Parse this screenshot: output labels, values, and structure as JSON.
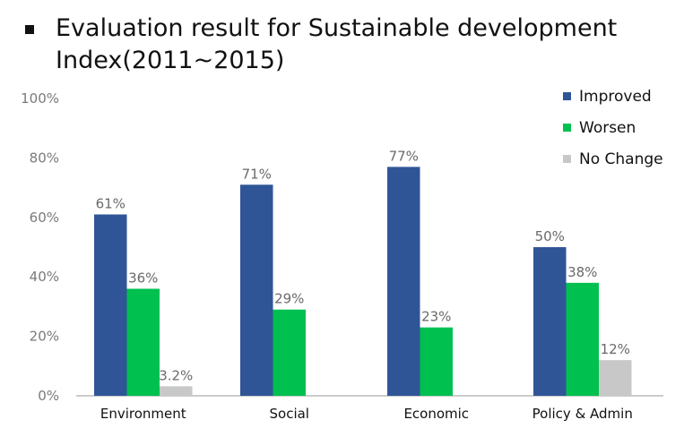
{
  "chart_data": {
    "type": "bar",
    "title": "Evaluation result for Sustainable development Index(2011~2015)",
    "title_lines": [
      "Evaluation result for Sustainable development",
      "Index(2011~2015)"
    ],
    "categories": [
      "Environment",
      "Social",
      "Economic",
      "Policy & Admin"
    ],
    "series": [
      {
        "name": "Improved",
        "color": "#2F5597",
        "values": [
          61,
          71,
          77,
          50
        ],
        "labels": [
          "61%",
          "71%",
          "77%",
          "50%"
        ]
      },
      {
        "name": "Worsen",
        "color": "#00C050",
        "values": [
          36,
          29,
          23,
          38
        ],
        "labels": [
          "36%",
          "29%",
          "23%",
          "38%"
        ]
      },
      {
        "name": "No Change",
        "color": "#C8C8C8",
        "values": [
          3.2,
          0,
          0,
          12
        ],
        "labels": [
          "3.2%",
          "",
          "",
          "12%"
        ]
      }
    ],
    "ylim": [
      0,
      100
    ],
    "yticks": [
      0,
      20,
      40,
      60,
      80,
      100
    ],
    "ytick_labels": [
      "0%",
      "20%",
      "40%",
      "60%",
      "80%",
      "100%"
    ],
    "xlabel": "",
    "ylabel": "",
    "legend_position": "top-right",
    "grid": false
  }
}
